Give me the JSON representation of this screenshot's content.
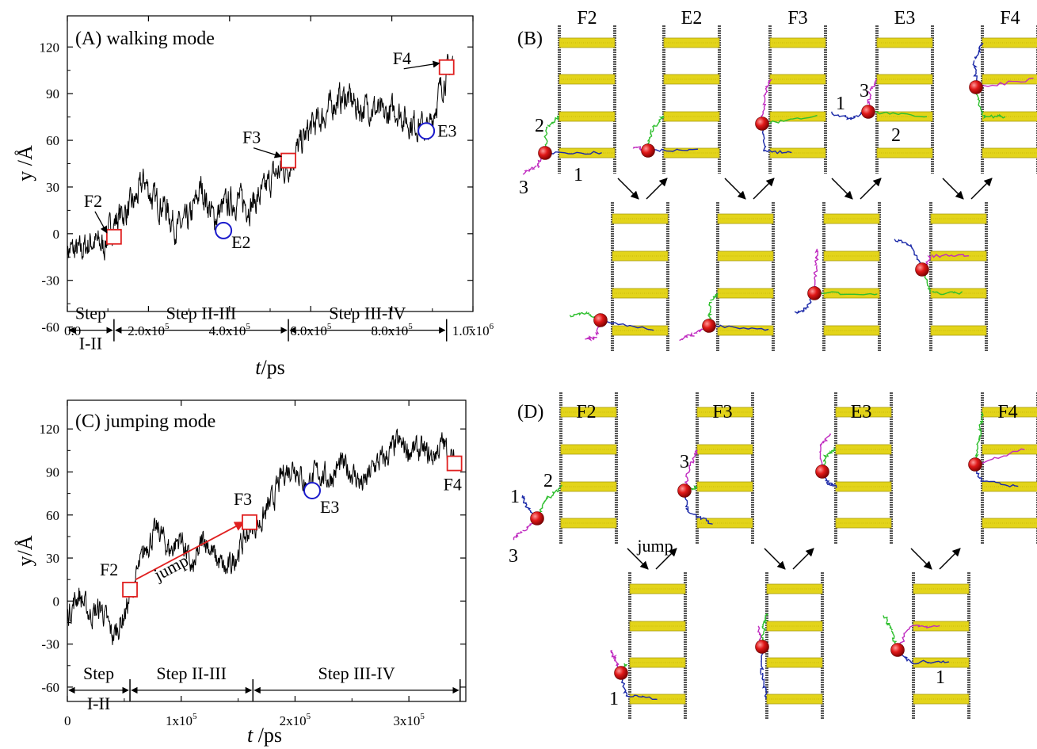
{
  "chart_data": [
    {
      "type": "line",
      "panel_label": "(A) walking mode",
      "xlabel": "t/ps",
      "ylabel": "y /Å",
      "xlim": [
        0,
        1000000
      ],
      "ylim": [
        -50,
        140
      ],
      "xticks": [
        0,
        200000,
        400000,
        600000,
        800000,
        1000000
      ],
      "xtick_labels": [
        {
          "pre": "0.0",
          "sup": ""
        },
        {
          "pre": "2.0x10",
          "sup": "5"
        },
        {
          "pre": "4.0x10",
          "sup": "5"
        },
        {
          "pre": "6.0x10",
          "sup": "5"
        },
        {
          "pre": "8.0x10",
          "sup": "5"
        },
        {
          "pre": "1.0x10",
          "sup": "6"
        }
      ],
      "yticks": [
        -60,
        -30,
        0,
        30,
        60,
        90,
        120
      ],
      "ytick_labels": [
        "-60",
        "-30",
        "0",
        "30",
        "60",
        "90",
        "120"
      ],
      "series": [
        {
          "trace_x": [
            0,
            30000,
            60000,
            90000,
            110000,
            130000,
            150000,
            170000,
            190000,
            210000,
            240000,
            270000,
            300000,
            330000,
            360000,
            390000,
            420000,
            450000,
            480000,
            510000,
            540000,
            570000,
            600000,
            630000,
            660000,
            690000,
            720000,
            750000,
            780000,
            810000,
            840000,
            870000,
            890000,
            910000,
            930000,
            950000
          ],
          "trace_y": [
            -10,
            -12,
            -5,
            -8,
            5,
            12,
            15,
            22,
            35,
            22,
            18,
            3,
            8,
            30,
            10,
            18,
            22,
            18,
            25,
            38,
            42,
            55,
            68,
            75,
            85,
            88,
            80,
            82,
            75,
            80,
            72,
            70,
            65,
            85,
            100,
            110
          ],
          "noise": 15,
          "color": "#000000"
        }
      ],
      "markers": [
        {
          "label": "F2",
          "x": 115000,
          "y": -2,
          "shape": "square",
          "color": "#e02020",
          "text_dx": -38,
          "text_dy": -38,
          "arrow": true
        },
        {
          "label": "E2",
          "x": 385000,
          "y": 2,
          "shape": "circle",
          "color": "#1a1acc",
          "text_dx": 10,
          "text_dy": 22,
          "arrow": false
        },
        {
          "label": "F3",
          "x": 545000,
          "y": 47,
          "shape": "square",
          "color": "#e02020",
          "text_dx": -58,
          "text_dy": -22,
          "arrow": true
        },
        {
          "label": "E3",
          "x": 885000,
          "y": 66,
          "shape": "circle",
          "color": "#1a1acc",
          "text_dx": 14,
          "text_dy": 7,
          "arrow": false
        },
        {
          "label": "F4",
          "x": 935000,
          "y": 107,
          "shape": "square",
          "color": "#e02020",
          "text_dx": -68,
          "text_dy": -4,
          "arrow": true
        }
      ],
      "steps": [
        {
          "label": "Step",
          "label2": "I-II",
          "x0": 0,
          "x1": 115000
        },
        {
          "label": "Step II-III",
          "label2": "",
          "x0": 115000,
          "x1": 545000
        },
        {
          "label": "Step III-IV",
          "label2": "",
          "x0": 545000,
          "x1": 935000
        }
      ]
    },
    {
      "type": "line",
      "panel_label": "(C) jumping mode",
      "xlabel": "t /ps",
      "ylabel": "y/Å",
      "xlim": [
        0,
        350000
      ],
      "ylim": [
        -70,
        140
      ],
      "xticks": [
        0,
        100000,
        200000,
        300000
      ],
      "xtick_labels": [
        {
          "pre": "0",
          "sup": ""
        },
        {
          "pre": "1x10",
          "sup": "5"
        },
        {
          "pre": "2x10",
          "sup": "5"
        },
        {
          "pre": "3x10",
          "sup": "5"
        }
      ],
      "yticks": [
        -60,
        -30,
        0,
        30,
        60,
        90,
        120
      ],
      "ytick_labels": [
        "-60",
        "-30",
        "0",
        "30",
        "60",
        "90",
        "120"
      ],
      "series": [
        {
          "trace_x": [
            0,
            10000,
            20000,
            30000,
            40000,
            50000,
            60000,
            70000,
            80000,
            90000,
            100000,
            110000,
            120000,
            130000,
            140000,
            150000,
            160000,
            170000,
            180000,
            190000,
            200000,
            210000,
            220000,
            230000,
            240000,
            250000,
            260000,
            270000,
            280000,
            290000,
            300000,
            310000,
            320000,
            330000,
            340000
          ],
          "trace_y": [
            -10,
            5,
            -10,
            -5,
            -25,
            -10,
            15,
            40,
            50,
            35,
            45,
            20,
            45,
            30,
            20,
            35,
            50,
            55,
            70,
            90,
            95,
            80,
            90,
            85,
            95,
            90,
            80,
            95,
            100,
            110,
            105,
            105,
            100,
            110,
            95
          ],
          "noise": 14,
          "color": "#000000"
        }
      ],
      "markers": [
        {
          "label": "F2",
          "x": 55000,
          "y": 8,
          "shape": "square",
          "color": "#e02020",
          "text_dx": -38,
          "text_dy": -18,
          "arrow": false
        },
        {
          "label": "F3",
          "x": 160000,
          "y": 55,
          "shape": "square",
          "color": "#e02020",
          "text_dx": -20,
          "text_dy": -22,
          "arrow": false
        },
        {
          "label": "E3",
          "x": 215000,
          "y": 77,
          "shape": "circle",
          "color": "#1a1acc",
          "text_dx": 10,
          "text_dy": 28,
          "arrow": false
        },
        {
          "label": "F4",
          "x": 340000,
          "y": 96,
          "shape": "square",
          "color": "#e02020",
          "text_dx": -14,
          "text_dy": 34,
          "arrow": false
        }
      ],
      "jump": {
        "label": "jump",
        "from_x": 60000,
        "from_y": 15,
        "to_x": 155000,
        "to_y": 55,
        "color": "#e02020"
      },
      "steps": [
        {
          "label": "Step",
          "label2": "I-II",
          "x0": 0,
          "x1": 55000
        },
        {
          "label": "Step II-III",
          "label2": "",
          "x0": 55000,
          "x1": 163000
        },
        {
          "label": "Step III-IV",
          "label2": "",
          "x0": 163000,
          "x1": 345000
        }
      ]
    }
  ],
  "panel_B": {
    "label": "(B)",
    "frames": [
      "F2",
      "E2",
      "F3",
      "E3",
      "F4"
    ],
    "bead_numbers": [
      "1",
      "2",
      "3"
    ]
  },
  "panel_D": {
    "label": "(D)",
    "frames": [
      "F2",
      "F3",
      "E3",
      "F4"
    ],
    "jump_label": "jump",
    "bead_numbers": [
      "1",
      "2",
      "3"
    ]
  },
  "colors": {
    "rung": "#e3d41a",
    "rail": "#555555",
    "bead": "#d41a1a",
    "leg_blue": "#1c2aa8",
    "leg_green": "#2fbf2f",
    "leg_magenta": "#c02cc0"
  }
}
